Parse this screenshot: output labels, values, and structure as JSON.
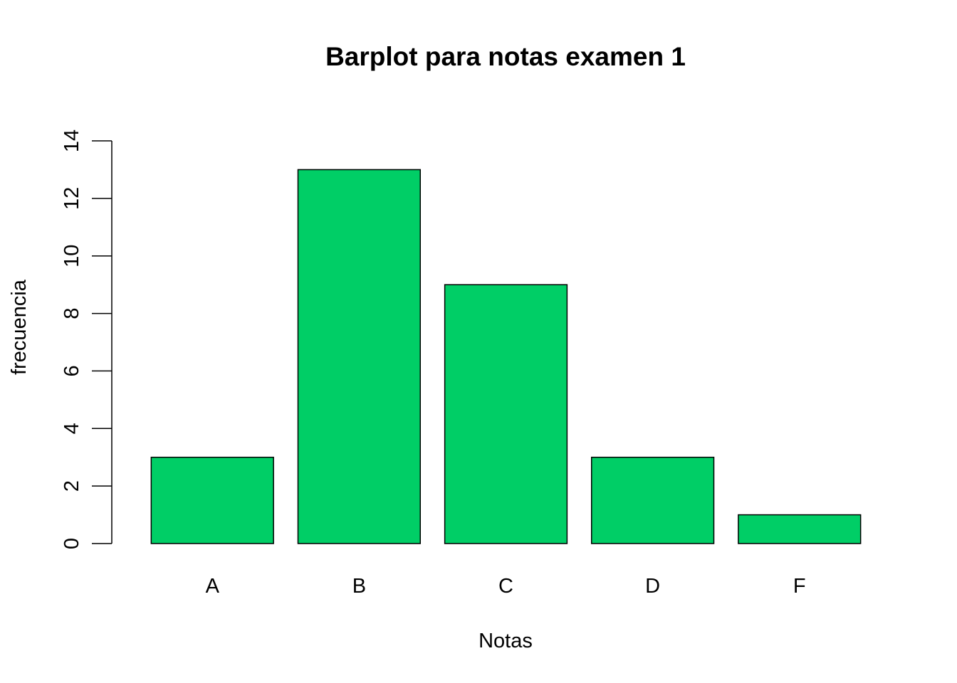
{
  "chart_data": {
    "type": "bar",
    "title": "Barplot para notas examen 1",
    "xlabel": "Notas",
    "ylabel": "frecuencia",
    "categories": [
      "A",
      "B",
      "C",
      "D",
      "F"
    ],
    "values": [
      3,
      13,
      9,
      3,
      1
    ],
    "ylim": [
      0,
      14
    ],
    "yticks": [
      0,
      2,
      4,
      6,
      8,
      10,
      12,
      14
    ],
    "bar_color": "#00CE66",
    "border_color": "#000000",
    "grid": false,
    "legend": "none"
  }
}
